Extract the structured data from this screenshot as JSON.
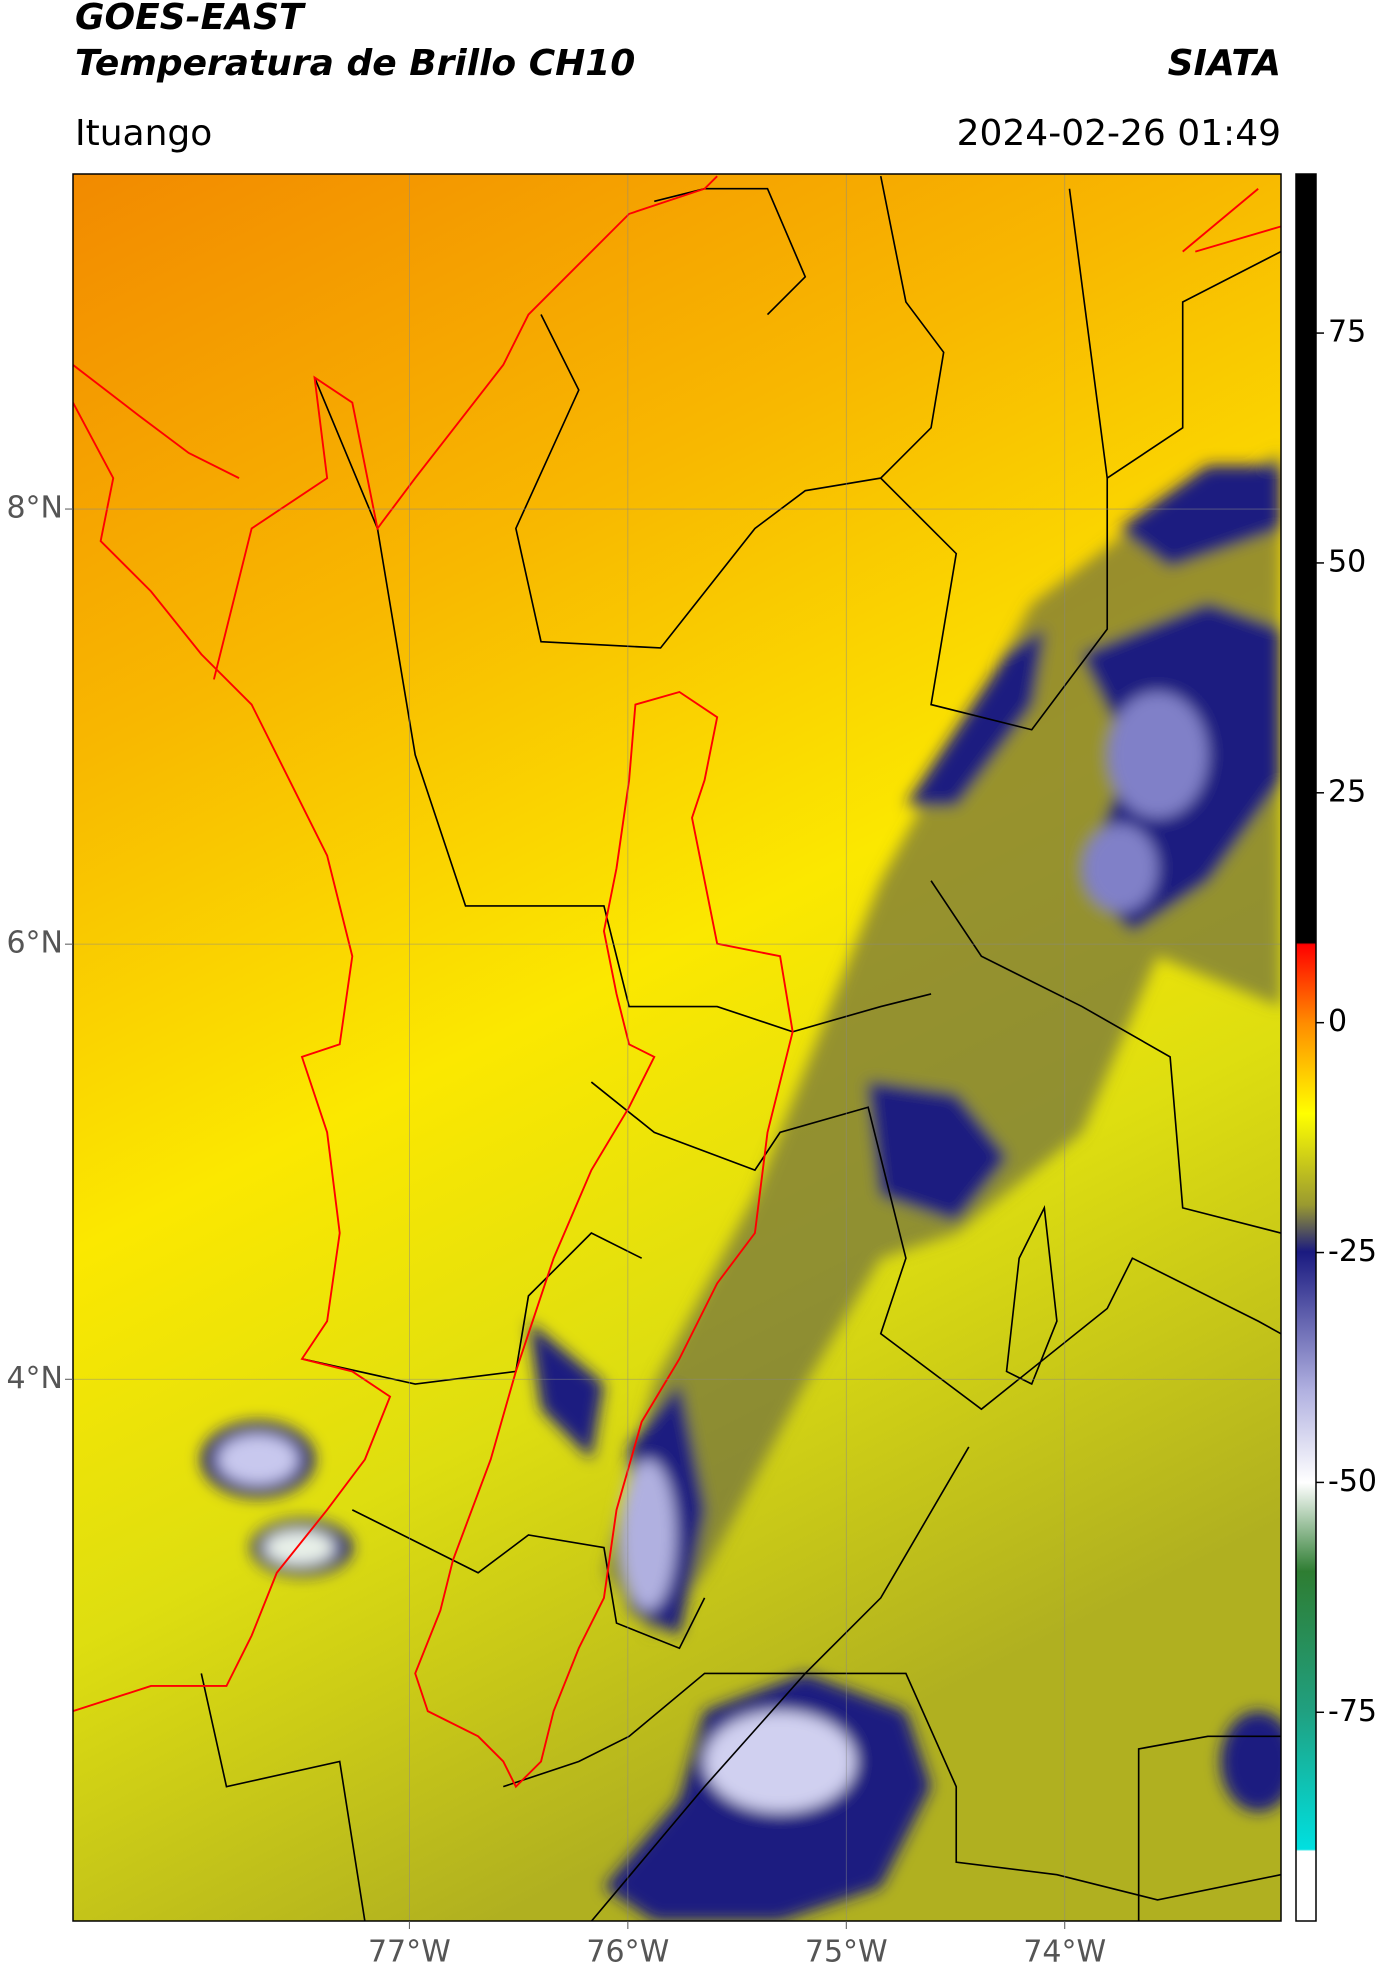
{
  "chart_data": {
    "type": "map",
    "title": "GOES-EAST",
    "subtitle": "Temperatura de Brillo CH10",
    "source": "SIATA",
    "location": "Ituango",
    "datetime": "2024-02-26 01:49",
    "xlim": [
      -78.54,
      -73.01
    ],
    "ylim": [
      1.51,
      9.54
    ],
    "xticks": [
      {
        "value": -77,
        "label": "77°W"
      },
      {
        "value": -76,
        "label": "76°W"
      },
      {
        "value": -75,
        "label": "75°W"
      },
      {
        "value": -74,
        "label": "74°W"
      }
    ],
    "yticks": [
      {
        "value": 8,
        "label": "8°N"
      },
      {
        "value": 6,
        "label": "6°N"
      },
      {
        "value": 4,
        "label": "4°N"
      }
    ],
    "grid": true,
    "colorbar": {
      "clim": [
        -97.7,
        92.3
      ],
      "ticks": [
        75,
        50,
        25,
        0,
        -25,
        -50,
        -75
      ]
    }
  }
}
